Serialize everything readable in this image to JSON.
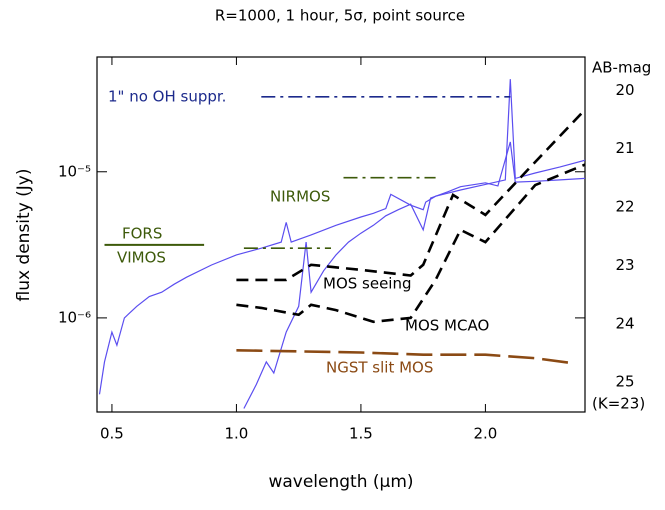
{
  "chart_data": {
    "type": "line",
    "title": "R=1000, 1 hour, 5σ, point source",
    "xlabel": "wavelength (μm)",
    "ylabel": "flux density (Jy)",
    "y2label": "AB-mag",
    "y2note": "(K=23)",
    "xlim": [
      0.44,
      2.4
    ],
    "xticks": [
      0.5,
      {
        "value": 1,
        "label": "1.0"
      },
      1.5,
      {
        "value": 2,
        "label": "2.0"
      }
    ],
    "ylim": [
      2.27e-07,
      6.1e-05
    ],
    "yscale": "log",
    "yticks": [
      {
        "value": 1e-06,
        "label": "10⁻⁶"
      },
      {
        "value": 1e-05,
        "label": "10⁻⁵"
      }
    ],
    "y2lim": [
      25.51,
      19.43
    ],
    "y2ticks": [
      20,
      21,
      22,
      23,
      24,
      25
    ],
    "annotations": [
      "1\" no OH suppr.",
      "NIRMOS",
      "FORS",
      "VIMOS",
      "MOS seeing",
      "MOS MCAO",
      "NGST slit MOS"
    ],
    "series": [
      {
        "color": "#5b4ef0",
        "style": "solid",
        "x": [
          0.45,
          0.47,
          0.5,
          0.52,
          0.55,
          0.6,
          0.65,
          0.7,
          0.75,
          0.8,
          0.9,
          1.0,
          1.1,
          1.18,
          1.2,
          1.22,
          1.3,
          1.4,
          1.5,
          1.55,
          1.6,
          1.62,
          1.7,
          1.75,
          1.76,
          1.8,
          1.9,
          2.0,
          2.08,
          2.1,
          2.12,
          2.2,
          2.3,
          2.4
        ],
        "values": [
          3e-07,
          5e-07,
          8e-07,
          6.5e-07,
          1e-06,
          1.2e-06,
          1.4e-06,
          1.5e-06,
          1.7e-06,
          1.9e-06,
          2.3e-06,
          2.7e-06,
          3e-06,
          3.3e-06,
          4.5e-06,
          3.3e-06,
          3.7e-06,
          4.3e-06,
          4.9e-06,
          5.2e-06,
          5.6e-06,
          7e-06,
          5.9e-06,
          5.5e-06,
          6.2e-06,
          6.8e-06,
          7.5e-06,
          8.2e-06,
          8.8e-06,
          4.3e-05,
          9e-06,
          9.8e-06,
          1.08e-05,
          1.2e-05
        ]
      },
      {
        "color": "#5b4ef0",
        "style": "solid",
        "x": [
          1.03,
          1.08,
          1.12,
          1.15,
          1.2,
          1.25,
          1.28,
          1.3,
          1.35,
          1.4,
          1.45,
          1.5,
          1.55,
          1.6,
          1.65,
          1.7,
          1.75,
          1.78,
          1.85,
          1.9,
          2.0,
          2.05,
          2.1,
          2.12,
          2.2,
          2.3,
          2.4
        ],
        "values": [
          2.4e-07,
          3.5e-07,
          5e-07,
          4.2e-07,
          8e-07,
          1.2e-06,
          3.3e-06,
          1.5e-06,
          2.1e-06,
          2.7e-06,
          3.3e-06,
          3.8e-06,
          4.3e-06,
          5e-06,
          5.5e-06,
          6e-06,
          4e-06,
          6.6e-06,
          7.3e-06,
          7.9e-06,
          8.4e-06,
          8e-06,
          1.6e-05,
          8.5e-06,
          8.6e-06,
          8.8e-06,
          9e-06
        ]
      },
      {
        "color": "#1c2a8c",
        "style": "dashdot",
        "x": [
          1.1,
          2.1
        ],
        "values": [
          3.26e-05,
          3.26e-05
        ]
      },
      {
        "color": "#3d5a0a",
        "style": "dashdot",
        "x": [
          1.43,
          1.8
        ],
        "values": [
          9.1e-06,
          9.1e-06
        ]
      },
      {
        "color": "#3d5a0a",
        "style": "dashdot",
        "x": [
          1.03,
          1.38
        ],
        "values": [
          3e-06,
          3e-06
        ]
      },
      {
        "color": "#3d5a0a",
        "style": "solid",
        "x": [
          0.47,
          0.87
        ],
        "values": [
          3.16e-06,
          3.16e-06
        ]
      },
      {
        "color": "#000000",
        "style": "dashed",
        "x": [
          1.0,
          1.2,
          1.3,
          1.5,
          1.7,
          1.75,
          1.87,
          2.0,
          2.17,
          2.4
        ],
        "values": [
          1.82e-06,
          1.82e-06,
          2.31e-06,
          2.13e-06,
          1.95e-06,
          2.31e-06,
          6.95e-06,
          5.07e-06,
          1.03e-05,
          2.66e-05
        ]
      },
      {
        "color": "#000000",
        "style": "dashed",
        "x": [
          1.0,
          1.1,
          1.25,
          1.3,
          1.4,
          1.55,
          1.7,
          1.8,
          1.9,
          2.0,
          2.2,
          2.4
        ],
        "values": [
          1.23e-06,
          1.17e-06,
          1.05e-06,
          1.23e-06,
          1.13e-06,
          9.4e-07,
          1e-06,
          1.82e-06,
          4e-06,
          3.3e-06,
          8.1e-06,
          1.12e-05
        ]
      },
      {
        "color": "#8b4a14",
        "style": "longdash",
        "x": [
          1.0,
          1.5,
          1.75,
          2.0,
          2.2,
          2.35
        ],
        "values": [
          6e-07,
          5.8e-07,
          5.6e-07,
          5.6e-07,
          5.3e-07,
          4.9e-07
        ]
      }
    ]
  }
}
